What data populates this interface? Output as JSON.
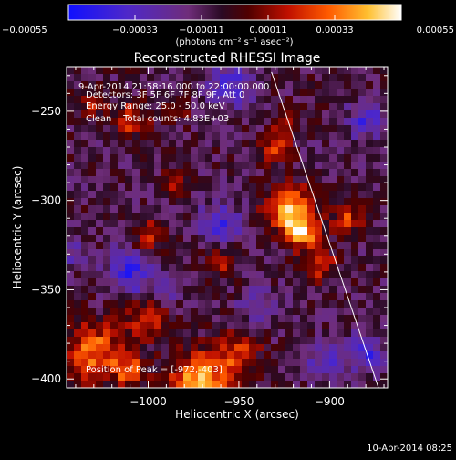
{
  "chart_data": {
    "type": "heatmap",
    "title": "Reconstructed RHESSI Image",
    "xlabel": "Heliocentric X (arcsec)",
    "ylabel": "Heliocentric Y (arcsec)",
    "xlim": [
      -1045,
      -868
    ],
    "ylim": [
      -405,
      -225
    ],
    "x_ticks": [
      -1000,
      -950,
      -900
    ],
    "x_tick_labels": [
      "−1000",
      "−950",
      "−900"
    ],
    "y_ticks": [
      -400,
      -350,
      -300,
      -250
    ],
    "y_tick_labels": [
      "−400",
      "−350",
      "−300",
      "−250"
    ],
    "colorbar": {
      "min": -0.00055,
      "max": 0.00055,
      "ticks": [
        -0.00055,
        -0.00033,
        -0.00011,
        0.00011,
        0.00033,
        0.00055
      ],
      "tick_labels": [
        "−0.00055",
        "−0.00033",
        "−0.00011",
        "0.00011",
        "0.00033",
        "0.00055"
      ],
      "unit_label": "(photons cm⁻² s⁻¹ asec⁻²)"
    },
    "annotations": [
      "9-Apr-2014 21:58:16.000 to 22:00:00.000",
      "Detectors: 3F 5F 6F 7F 8F 9F, Att 0",
      "Energy Range: 25.0 - 50.0 keV",
      "Clean    Total counts: 4.83E+03"
    ],
    "peak_label": "Position of Peak = [-972,-403]",
    "limb_line": [
      [
        -932,
        -228
      ],
      [
        -873,
        -405
      ]
    ],
    "hotspots": [
      {
        "x": -922,
        "y": -305,
        "sigma": 9,
        "value": 0.0005
      },
      {
        "x": -915,
        "y": -318,
        "sigma": 7,
        "value": 0.00042
      },
      {
        "x": -905,
        "y": -336,
        "sigma": 6,
        "value": 0.0003
      },
      {
        "x": -890,
        "y": -310,
        "sigma": 6,
        "value": 0.0003
      },
      {
        "x": -930,
        "y": -270,
        "sigma": 6,
        "value": 0.00028
      },
      {
        "x": -1010,
        "y": -255,
        "sigma": 7,
        "value": 0.0003
      },
      {
        "x": -1030,
        "y": -245,
        "sigma": 5,
        "value": 0.0003
      },
      {
        "x": -1000,
        "y": -320,
        "sigma": 7,
        "value": 0.00025
      },
      {
        "x": -985,
        "y": -290,
        "sigma": 5,
        "value": 0.00022
      },
      {
        "x": -985,
        "y": -250,
        "sigma": 5,
        "value": 0.00018
      },
      {
        "x": -972,
        "y": -403,
        "sigma": 12,
        "value": 0.00055
      },
      {
        "x": -1030,
        "y": -385,
        "sigma": 12,
        "value": 0.0004
      },
      {
        "x": -1000,
        "y": -365,
        "sigma": 8,
        "value": 0.0003
      },
      {
        "x": -950,
        "y": -385,
        "sigma": 8,
        "value": 0.0003
      },
      {
        "x": -960,
        "y": -335,
        "sigma": 6,
        "value": 0.0002
      },
      {
        "x": -1010,
        "y": -395,
        "sigma": 6,
        "value": 0.00035
      },
      {
        "x": -925,
        "y": -255,
        "sigma": 5,
        "value": 0.0002
      }
    ],
    "coldspots": [
      {
        "x": -1010,
        "y": -340,
        "sigma": 9,
        "value": -0.00035
      },
      {
        "x": -960,
        "y": -312,
        "sigma": 8,
        "value": -0.00028
      },
      {
        "x": -955,
        "y": -235,
        "sigma": 9,
        "value": -0.0003
      },
      {
        "x": -880,
        "y": -255,
        "sigma": 7,
        "value": -0.0003
      },
      {
        "x": -880,
        "y": -385,
        "sigma": 7,
        "value": -0.0003
      },
      {
        "x": -903,
        "y": -390,
        "sigma": 7,
        "value": -0.00025
      },
      {
        "x": -940,
        "y": -360,
        "sigma": 7,
        "value": -0.0002
      },
      {
        "x": -1040,
        "y": -330,
        "sigma": 5,
        "value": -0.0002
      },
      {
        "x": -990,
        "y": -350,
        "sigma": 5,
        "value": -0.0002
      }
    ],
    "background_value": -8e-05,
    "grid": false
  },
  "footer": {
    "timestamp": "10-Apr-2014 08:25"
  },
  "colors": {
    "background": "#000000",
    "foreground": "#ffffff"
  }
}
